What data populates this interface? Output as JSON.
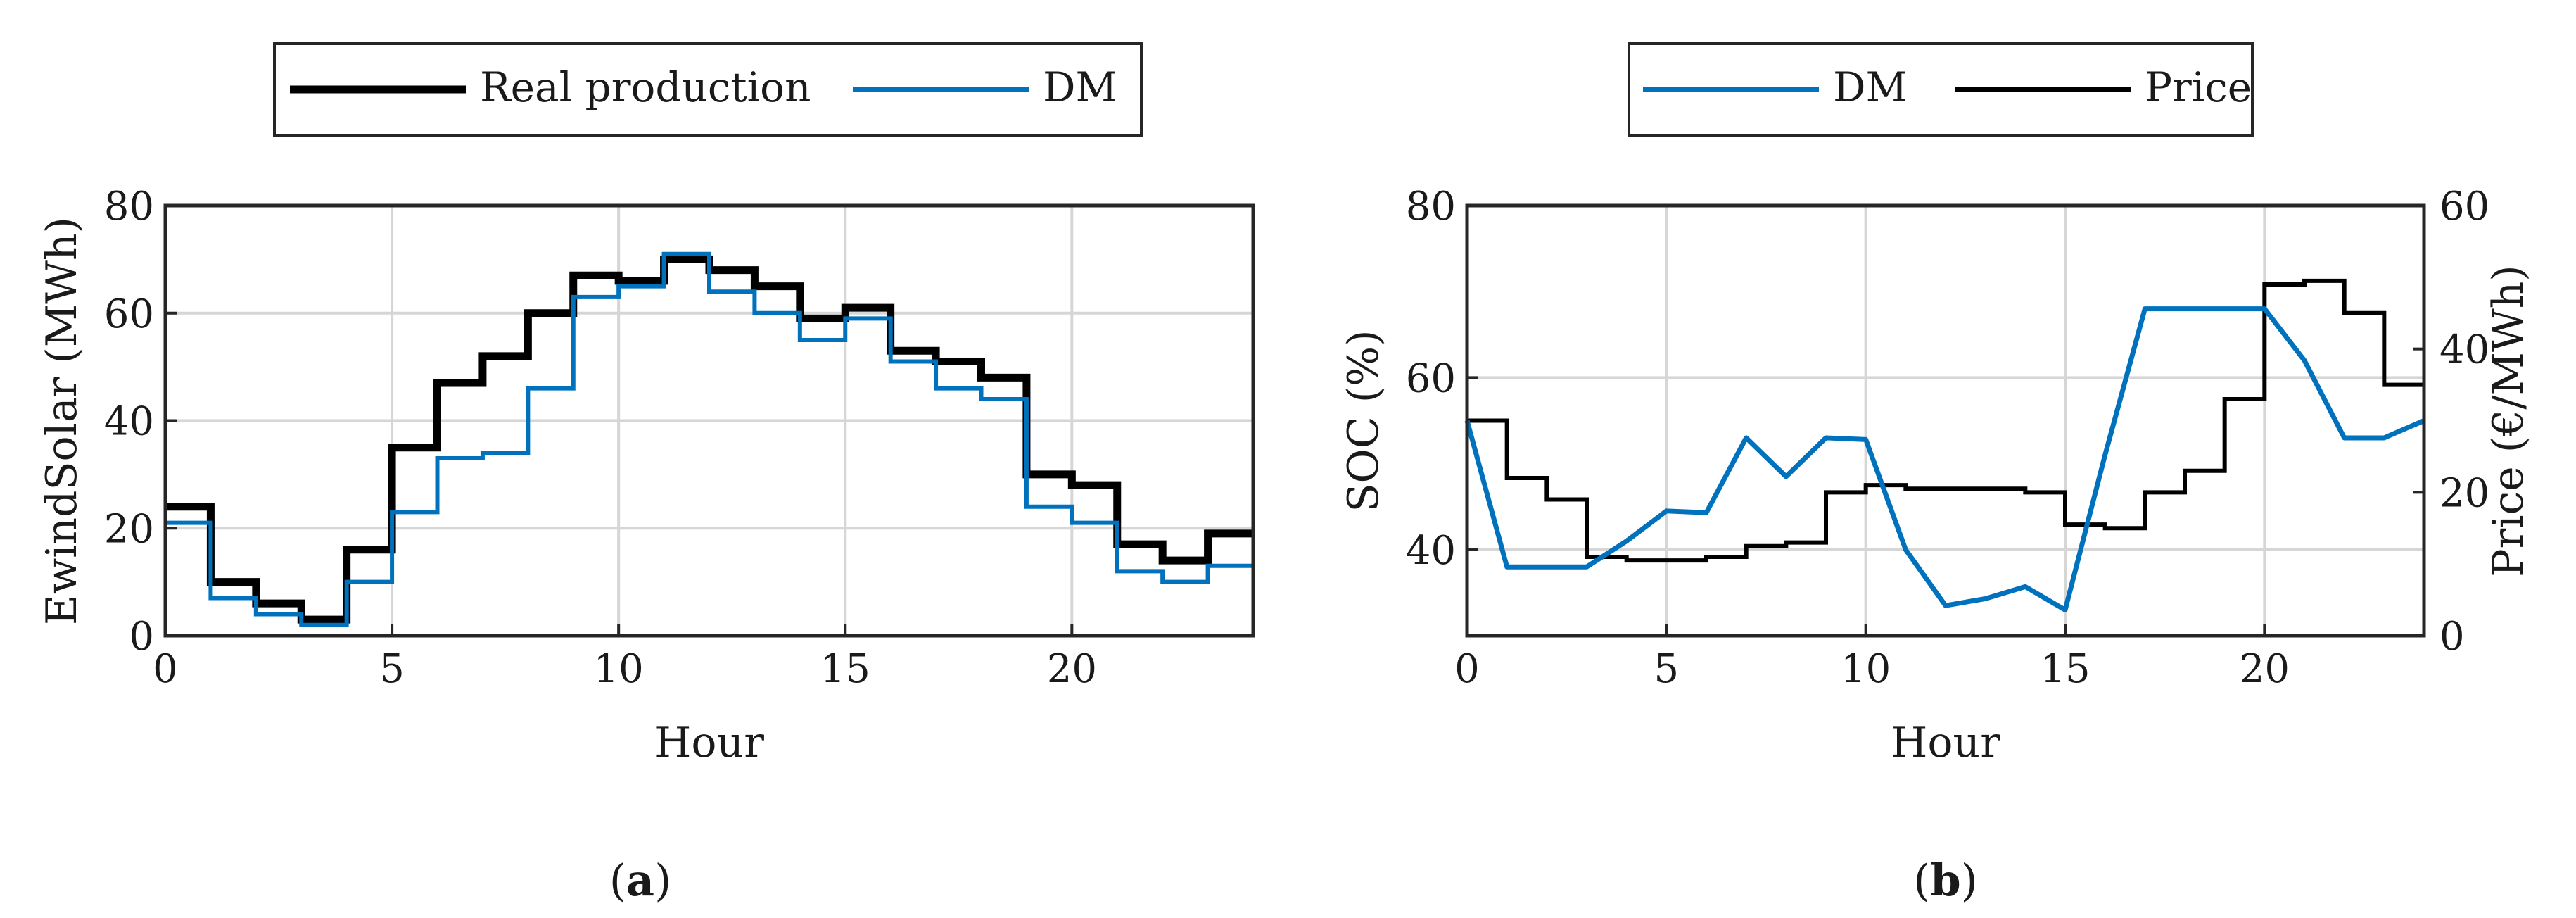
{
  "chart_data": [
    {
      "type": "line",
      "subtitle_letter": "a",
      "xlabel": "Hour",
      "ylabel": "EwindSolar (MWh)",
      "xlim": [
        0,
        24
      ],
      "ylim": [
        0,
        80
      ],
      "xticks": [
        0,
        5,
        10,
        15,
        20
      ],
      "yticks": [
        0,
        20,
        40,
        60,
        80
      ],
      "grid": true,
      "legend_position": "top-center, outside",
      "series": [
        {
          "name": "Real production",
          "style": "stairs",
          "color": "#000000",
          "values": [
            24,
            10,
            6,
            3,
            16,
            35,
            47,
            52,
            60,
            67,
            66,
            70,
            68,
            65,
            59,
            61,
            53,
            51,
            48,
            30,
            28,
            17,
            14,
            19
          ]
        },
        {
          "name": "DM",
          "style": "stairs",
          "color": "#0072BD",
          "values": [
            21,
            7,
            4,
            2,
            10,
            23,
            33,
            34,
            46,
            63,
            65,
            71,
            64,
            60,
            55,
            59,
            51,
            46,
            44,
            24,
            21,
            12,
            10,
            13
          ]
        }
      ]
    },
    {
      "type": "line",
      "subtitle_letter": "b",
      "xlabel": "Hour",
      "ylabel_left": "SOC (%)",
      "ylabel_right": "Price (€/MWh)",
      "xlim": [
        0,
        24
      ],
      "ylim_left": [
        30,
        80
      ],
      "ylim_right": [
        0,
        60
      ],
      "xticks": [
        0,
        5,
        10,
        15,
        20
      ],
      "yticks_left": [
        40,
        60,
        80
      ],
      "yticks_right": [
        0,
        20,
        40,
        60
      ],
      "grid": true,
      "legend_position": "top-center, outside",
      "series": [
        {
          "name": "DM",
          "axis": "left",
          "style": "line",
          "color": "#0072BD",
          "x": [
            0,
            1,
            2,
            3,
            4,
            5,
            6,
            7,
            8,
            9,
            10,
            11,
            12,
            13,
            14,
            15,
            16,
            17,
            18,
            19,
            20,
            21,
            22,
            23,
            24
          ],
          "values": [
            55,
            38,
            38,
            38,
            41,
            44.5,
            44.3,
            53,
            48.5,
            53,
            52.8,
            40,
            33.5,
            34.3,
            35.7,
            33,
            51,
            68,
            68,
            68,
            68,
            62,
            53,
            53,
            55
          ]
        },
        {
          "name": "Price",
          "axis": "right",
          "style": "stairs",
          "color": "#000000",
          "values": [
            30,
            22,
            19,
            11,
            10.5,
            10.5,
            11,
            12.5,
            13,
            20,
            21,
            20.5,
            20.5,
            20.5,
            20,
            15.5,
            15,
            20,
            23,
            33,
            49,
            49.5,
            45,
            35
          ]
        }
      ]
    }
  ]
}
